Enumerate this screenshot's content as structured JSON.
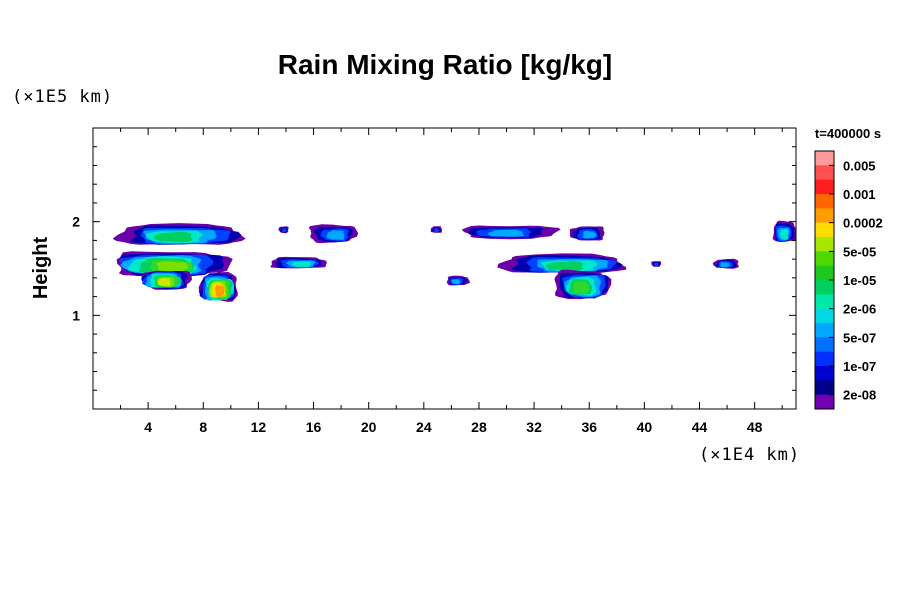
{
  "chart_data": {
    "type": "heatmap",
    "title": "Rain Mixing Ratio [kg/kg]",
    "time_label": "t=400000 s",
    "xlabel": "",
    "ylabel": "Height",
    "x_unit": "(×1E4 km)",
    "y_unit": "(×1E5 km)",
    "xlim": [
      0,
      51
    ],
    "ylim": [
      0,
      3
    ],
    "x_ticks": [
      4,
      8,
      12,
      16,
      20,
      24,
      28,
      32,
      36,
      40,
      44,
      48
    ],
    "y_ticks": [
      1,
      2
    ],
    "colorbar": {
      "labels": [
        "0.005",
        "0.001",
        "0.0002",
        "5e-05",
        "1e-05",
        "2e-06",
        "5e-07",
        "1e-07",
        "2e-08"
      ],
      "colors": [
        "#ff9a9a",
        "#ff5050",
        "#ff1e1e",
        "#ff6600",
        "#ff9d00",
        "#ffdd00",
        "#a6e600",
        "#4fd800",
        "#1ec81e",
        "#00d060",
        "#00e8a8",
        "#00d8e8",
        "#00a8ff",
        "#0070ff",
        "#0030ff",
        "#0000d0",
        "#00008a",
        "#7000b0"
      ]
    },
    "clouds": [
      {
        "x0": 1.8,
        "x1": 10.7,
        "y_top": 1.97,
        "y_bot": 1.75,
        "core": 5
      },
      {
        "x0": 1.3,
        "x1": 9.5,
        "y_top": 1.68,
        "y_bot": 1.42,
        "core": 7
      },
      {
        "x0": 3.5,
        "x1": 7.0,
        "y_top": 1.48,
        "y_bot": 1.28,
        "core": 8
      },
      {
        "x0": 7.8,
        "x1": 10.5,
        "y_top": 1.45,
        "y_bot": 1.15,
        "core": 10
      },
      {
        "x0": 13.0,
        "x1": 17.0,
        "y_top": 1.62,
        "y_bot": 1.5,
        "core": 4
      },
      {
        "x0": 15.8,
        "x1": 19.2,
        "y_top": 1.97,
        "y_bot": 1.78,
        "core": 3
      },
      {
        "x0": 13.5,
        "x1": 14.2,
        "y_top": 1.95,
        "y_bot": 1.88,
        "core": 2
      },
      {
        "x0": 24.5,
        "x1": 25.3,
        "y_top": 1.95,
        "y_bot": 1.88,
        "core": 2
      },
      {
        "x0": 25.6,
        "x1": 27.2,
        "y_top": 1.42,
        "y_bot": 1.32,
        "core": 3
      },
      {
        "x0": 26.8,
        "x1": 33.5,
        "y_top": 1.96,
        "y_bot": 1.82,
        "core": 3
      },
      {
        "x0": 34.7,
        "x1": 37.2,
        "y_top": 1.95,
        "y_bot": 1.8,
        "core": 3
      },
      {
        "x0": 30.0,
        "x1": 38.8,
        "y_top": 1.65,
        "y_bot": 1.45,
        "core": 5
      },
      {
        "x0": 33.5,
        "x1": 37.5,
        "y_top": 1.48,
        "y_bot": 1.18,
        "core": 6
      },
      {
        "x0": 40.5,
        "x1": 41.2,
        "y_top": 1.58,
        "y_bot": 1.52,
        "core": 2
      },
      {
        "x0": 45.0,
        "x1": 46.8,
        "y_top": 1.6,
        "y_bot": 1.5,
        "core": 3
      },
      {
        "x0": 49.3,
        "x1": 51.0,
        "y_top": 2.0,
        "y_bot": 1.78,
        "core": 4
      }
    ]
  }
}
